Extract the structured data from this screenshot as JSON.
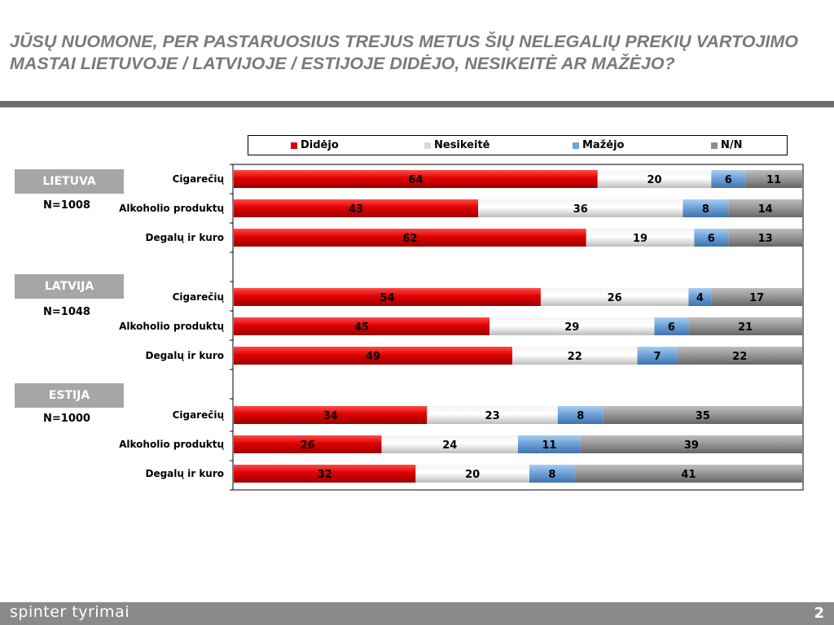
{
  "slide": {
    "title": "JŪSŲ NUOMONE, PER PASTARUOSIUS TREJUS METUS ŠIŲ NELEGALIŲ PREKIŲ VARTOJIMO MASTAI LIETUVOJE / LATVIJOJE / ESTIJOJE DIDĖJO, NESIKEITĖ AR MAŽĖJO?",
    "footer_brand": "spinter tyrimai",
    "page_number": "2"
  },
  "groups": [
    {
      "country": "LIETUVA",
      "n": "N=1008"
    },
    {
      "country": "LATVIJA",
      "n": "N=1048"
    },
    {
      "country": "ESTIJA",
      "n": "N=1000"
    }
  ],
  "legend": [
    {
      "name": "Didėjo",
      "color": "#d8000a"
    },
    {
      "name": "Nesikeitė",
      "color": "#d9d9d9"
    },
    {
      "name": "Mažėjo",
      "color": "#6fa3d8"
    },
    {
      "name": "N/N",
      "color": "#8c8c8c"
    }
  ],
  "chart_data": {
    "type": "bar",
    "orientation": "horizontal",
    "stacked": true,
    "xlim": [
      0,
      100
    ],
    "groups": [
      {
        "country": "LIETUVA",
        "categories": [
          "Cigarečių",
          "Alkoholio produktų",
          "Degalų ir kuro"
        ],
        "series": [
          {
            "name": "Didėjo",
            "values": [
              64,
              43,
              62
            ]
          },
          {
            "name": "Nesikeitė",
            "values": [
              20,
              36,
              19
            ]
          },
          {
            "name": "Mažėjo",
            "values": [
              6,
              8,
              6
            ]
          },
          {
            "name": "N/N",
            "values": [
              11,
              14,
              13
            ]
          }
        ]
      },
      {
        "country": "LATVIJA",
        "categories": [
          "Cigarečių",
          "Alkoholio produktų",
          "Degalų ir kuro"
        ],
        "series": [
          {
            "name": "Didėjo",
            "values": [
              54,
              45,
              49
            ]
          },
          {
            "name": "Nesikeitė",
            "values": [
              26,
              29,
              22
            ]
          },
          {
            "name": "Mažėjo",
            "values": [
              4,
              6,
              7
            ]
          },
          {
            "name": "N/N",
            "values": [
              17,
              21,
              22
            ]
          }
        ]
      },
      {
        "country": "ESTIJA",
        "categories": [
          "Cigarečių",
          "Alkoholio produktų",
          "Degalų ir kuro"
        ],
        "series": [
          {
            "name": "Didėjo",
            "values": [
              34,
              26,
              32
            ]
          },
          {
            "name": "Nesikeitė",
            "values": [
              23,
              24,
              20
            ]
          },
          {
            "name": "Mažėjo",
            "values": [
              8,
              11,
              8
            ]
          },
          {
            "name": "N/N",
            "values": [
              35,
              39,
              41
            ]
          }
        ]
      }
    ],
    "legend_position": "top",
    "grid": false
  }
}
